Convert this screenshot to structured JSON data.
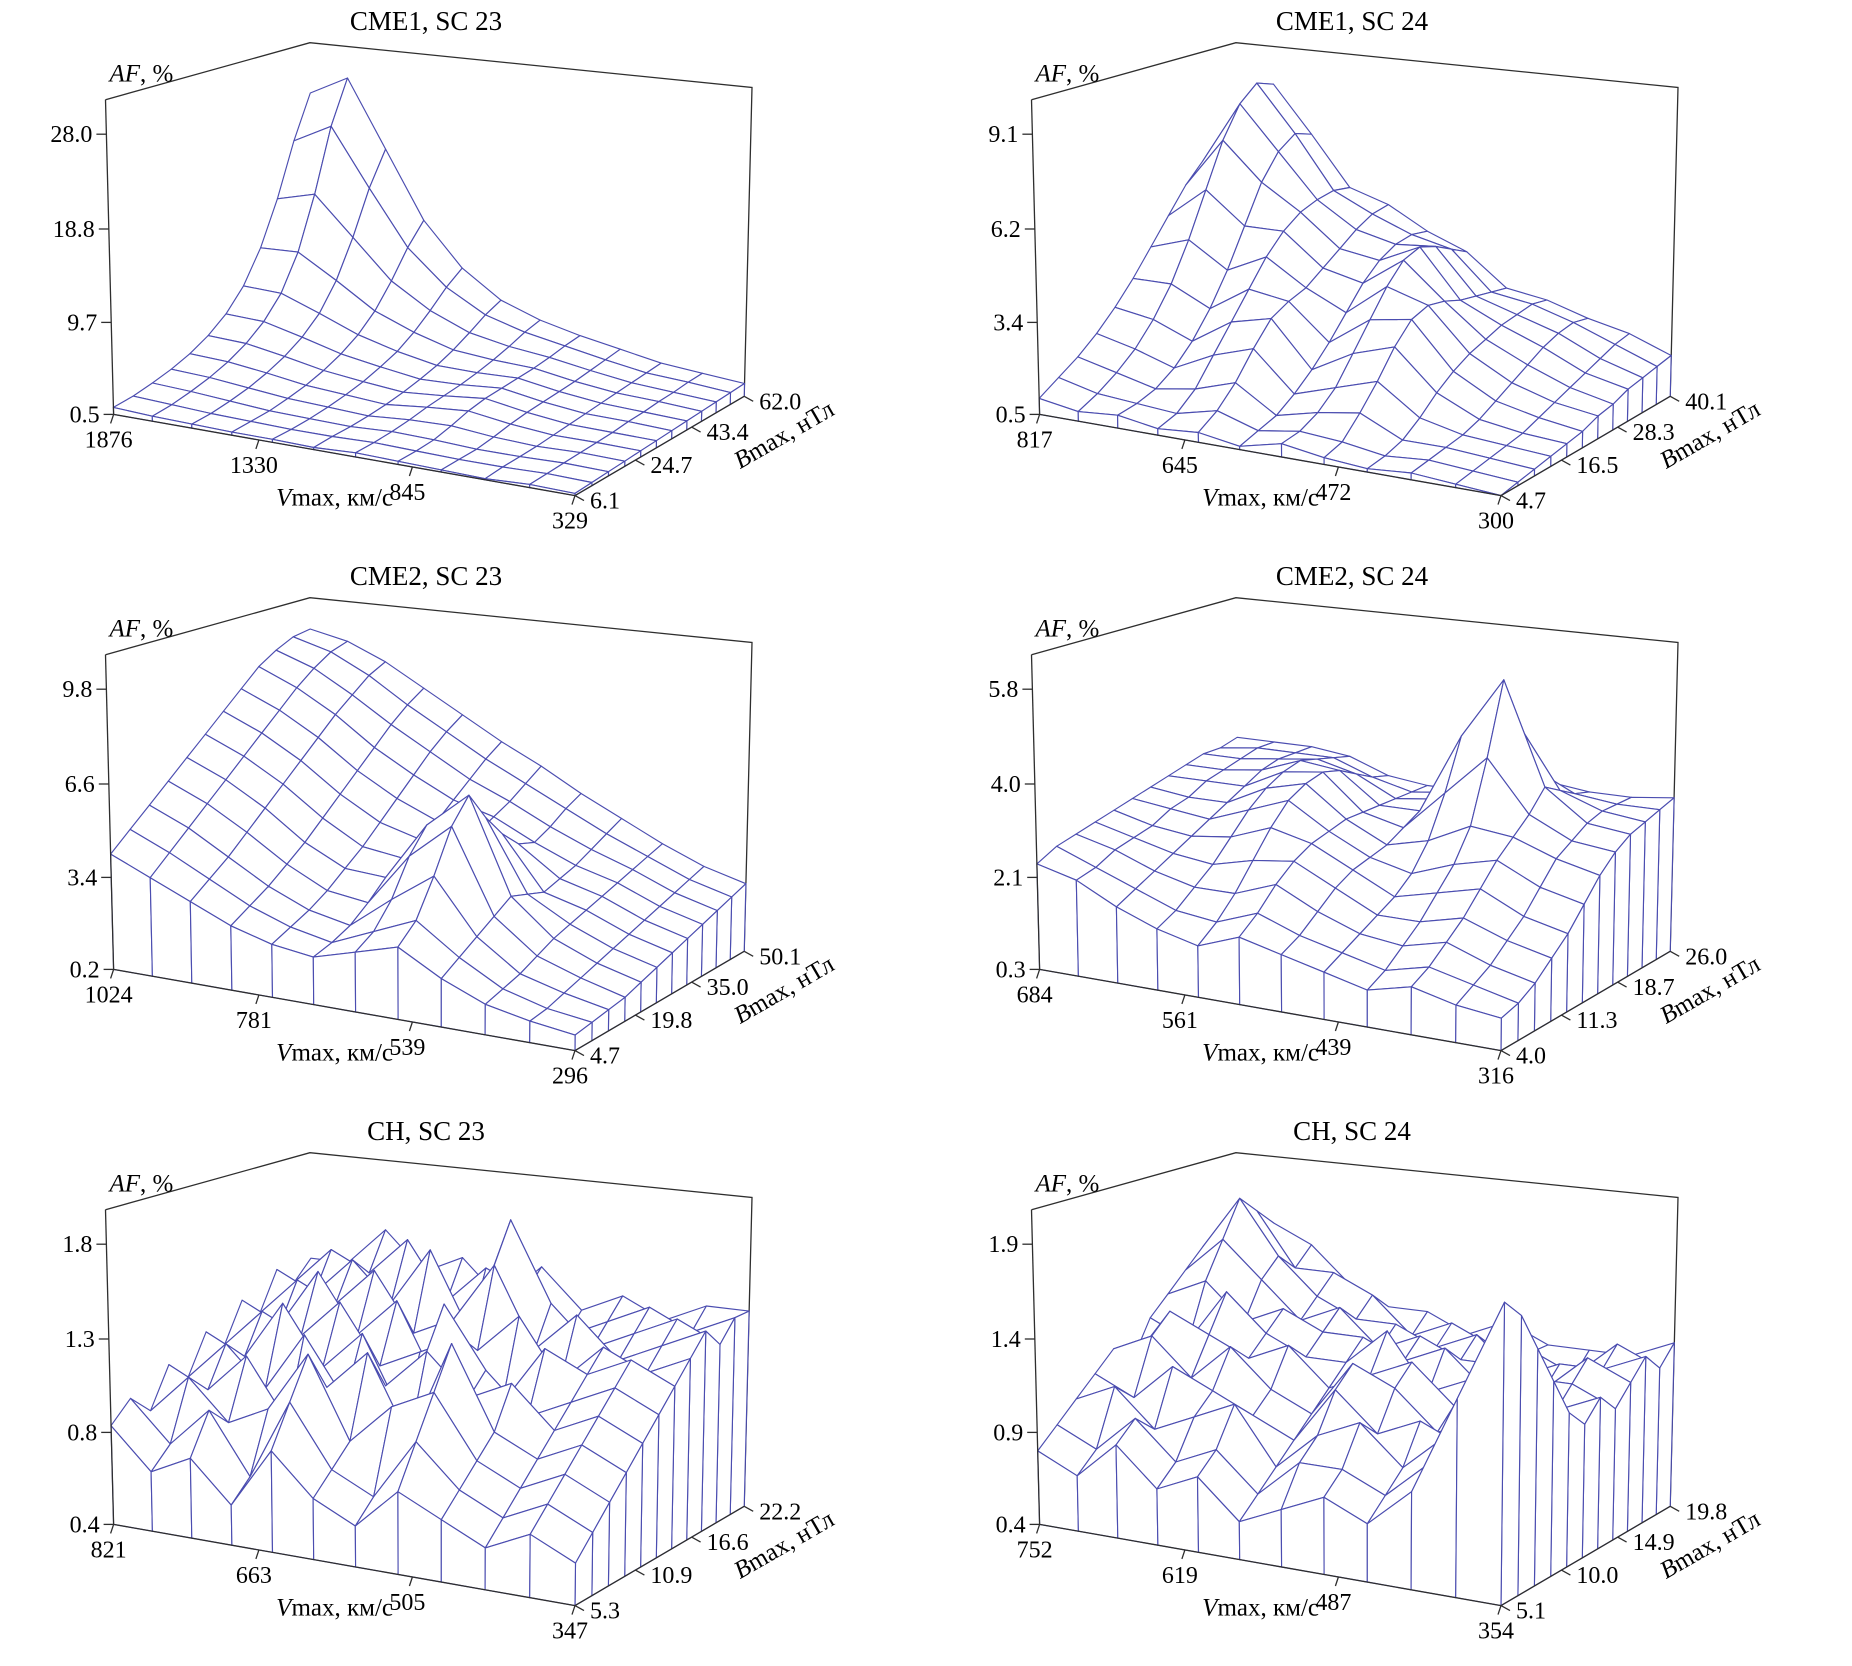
{
  "figure": {
    "background": "#ffffff",
    "mesh_color": "#4b4db0",
    "axis_color": "#2e2e2e",
    "text_color": "#000000",
    "values_layout": "rows: Bmax min(front) to max(back); cols: Vmax max(left) to min(right)"
  },
  "chart_data": [
    {
      "type": "surface",
      "title": "CME1, SC 23",
      "z_axis": {
        "label": "AF, %",
        "var": "AF",
        "rest": ", %",
        "ticks": [
          "0.5",
          "9.7",
          "18.8",
          "28.0"
        ]
      },
      "x_axis": {
        "label": "Vmax, км/с",
        "var": "V",
        "rest": "max, км/с",
        "ticks": [
          "1876",
          "1330",
          "845",
          "329"
        ]
      },
      "y_axis": {
        "label": "Bmax, нТл",
        "var": "B",
        "rest": "max, нТл",
        "ticks": [
          "6.1",
          "24.7",
          "43.4",
          "62.0"
        ]
      },
      "values": [
        [
          1.2,
          1.0,
          0.9,
          0.8,
          0.8,
          0.7,
          0.9,
          0.8,
          0.7,
          0.6,
          0.8,
          0.7
        ],
        [
          1.5,
          1.3,
          1.1,
          1.0,
          0.9,
          0.9,
          1.0,
          0.9,
          0.8,
          0.8,
          0.9,
          0.8
        ],
        [
          2.0,
          1.8,
          1.5,
          1.2,
          1.1,
          1.0,
          1.2,
          1.1,
          0.9,
          0.9,
          1.0,
          0.9
        ],
        [
          2.6,
          2.4,
          2.0,
          1.6,
          1.4,
          1.2,
          1.5,
          1.6,
          1.2,
          1.0,
          1.1,
          1.0
        ],
        [
          3.4,
          3.2,
          2.7,
          2.1,
          1.8,
          1.5,
          1.9,
          2.2,
          1.6,
          1.2,
          1.2,
          1.1
        ],
        [
          4.5,
          4.3,
          3.6,
          2.8,
          2.3,
          1.9,
          2.2,
          2.6,
          1.9,
          1.4,
          1.3,
          1.2
        ],
        [
          6.0,
          5.8,
          4.8,
          3.7,
          3.0,
          2.4,
          2.5,
          2.8,
          2.1,
          1.6,
          1.5,
          1.3
        ],
        [
          8.2,
          8.0,
          6.5,
          4.9,
          3.8,
          3.0,
          2.9,
          3.0,
          2.3,
          1.8,
          1.6,
          1.4
        ],
        [
          11.5,
          11.6,
          9.2,
          6.6,
          5.0,
          3.8,
          3.4,
          3.2,
          2.5,
          2.0,
          1.8,
          1.5
        ],
        [
          16.0,
          17.0,
          13.0,
          9.0,
          6.5,
          4.8,
          4.0,
          3.5,
          2.8,
          2.2,
          1.9,
          1.6
        ],
        [
          21.5,
          23.5,
          17.5,
          11.8,
          8.2,
          5.9,
          4.7,
          3.9,
          3.1,
          2.4,
          2.1,
          1.7
        ],
        [
          26.0,
          28.0,
          21.0,
          14.0,
          9.5,
          6.7,
          5.2,
          4.2,
          3.4,
          2.6,
          2.2,
          1.8
        ]
      ]
    },
    {
      "type": "surface",
      "title": "CME1, SC 24",
      "z_axis": {
        "label": "AF, %",
        "var": "AF",
        "rest": ", %",
        "ticks": [
          "0.5",
          "3.4",
          "6.2",
          "9.1"
        ]
      },
      "x_axis": {
        "label": "Vmax, км/с",
        "var": "V",
        "rest": "max, км/с",
        "ticks": [
          "817",
          "645",
          "472",
          "300"
        ]
      },
      "y_axis": {
        "label": "Bmax, нТл",
        "var": "B",
        "rest": "max, нТл",
        "ticks": [
          "4.7",
          "16.5",
          "28.3",
          "40.1"
        ]
      },
      "values": [
        [
          1.0,
          0.8,
          0.9,
          0.7,
          0.8,
          0.6,
          0.9,
          0.7,
          0.6,
          0.7,
          0.6,
          0.5
        ],
        [
          1.4,
          1.1,
          1.0,
          0.9,
          1.2,
          0.8,
          1.0,
          0.9,
          0.7,
          0.8,
          0.7,
          0.6
        ],
        [
          1.8,
          1.5,
          1.2,
          1.4,
          1.8,
          1.0,
          1.3,
          1.5,
          0.9,
          0.9,
          0.8,
          0.7
        ],
        [
          2.3,
          2.0,
          1.6,
          2.2,
          2.6,
          1.4,
          1.8,
          2.2,
          1.3,
          1.0,
          0.9,
          0.8
        ],
        [
          2.9,
          2.7,
          2.2,
          3.0,
          3.3,
          1.9,
          2.6,
          3.0,
          1.8,
          1.2,
          1.0,
          0.9
        ],
        [
          3.6,
          3.6,
          3.0,
          3.8,
          3.6,
          2.5,
          3.4,
          3.6,
          2.2,
          1.5,
          1.2,
          1.0
        ],
        [
          4.4,
          4.8,
          4.0,
          4.6,
          3.8,
          3.2,
          4.2,
          3.8,
          2.5,
          1.8,
          1.4,
          1.2
        ],
        [
          5.2,
          6.2,
          5.2,
          5.2,
          4.2,
          3.9,
          4.8,
          3.7,
          2.7,
          2.1,
          1.6,
          1.3
        ],
        [
          6.0,
          7.6,
          6.4,
          5.6,
          4.6,
          4.4,
          5.0,
          3.5,
          2.9,
          2.4,
          1.8,
          1.5
        ],
        [
          6.6,
          8.6,
          7.2,
          5.8,
          5.0,
          4.7,
          4.8,
          3.4,
          3.0,
          2.6,
          2.0,
          1.6
        ],
        [
          7.0,
          9.1,
          7.6,
          5.9,
          5.3,
          4.8,
          4.5,
          3.3,
          3.1,
          2.7,
          2.2,
          1.7
        ],
        [
          7.2,
          8.9,
          7.4,
          5.8,
          5.4,
          4.7,
          4.2,
          3.2,
          3.0,
          2.6,
          2.3,
          1.8
        ]
      ]
    },
    {
      "type": "surface",
      "title": "CME2, SC 23",
      "z_axis": {
        "label": "AF, %",
        "var": "AF",
        "rest": ", %",
        "ticks": [
          "0.2",
          "3.4",
          "6.6",
          "9.8"
        ]
      },
      "x_axis": {
        "label": "Vmax, км/с",
        "var": "V",
        "rest": "max, км/с",
        "ticks": [
          "1024",
          "781",
          "539",
          "296"
        ]
      },
      "y_axis": {
        "label": "Bmax, нТл",
        "var": "B",
        "rest": "max, нТл",
        "ticks": [
          "4.7",
          "19.8",
          "35.0",
          "50.1"
        ]
      },
      "values": [
        [
          4.2,
          3.6,
          3.0,
          2.4,
          2.0,
          1.8,
          2.2,
          2.6,
          1.8,
          1.2,
          0.9,
          0.7
        ],
        [
          4.8,
          4.2,
          3.5,
          2.8,
          2.3,
          2.0,
          2.6,
          3.2,
          2.2,
          1.4,
          1.0,
          0.8
        ],
        [
          5.4,
          4.8,
          4.0,
          3.2,
          2.6,
          2.3,
          3.4,
          4.4,
          2.6,
          1.6,
          1.2,
          0.9
        ],
        [
          6.0,
          5.4,
          4.6,
          3.7,
          3.0,
          2.8,
          4.6,
          5.8,
          3.0,
          1.9,
          1.4,
          1.0
        ],
        [
          6.6,
          6.0,
          5.2,
          4.2,
          3.5,
          3.4,
          5.4,
          6.6,
          3.4,
          2.2,
          1.6,
          1.2
        ],
        [
          7.2,
          6.6,
          5.8,
          4.8,
          4.0,
          3.8,
          5.0,
          5.6,
          3.2,
          2.4,
          1.8,
          1.4
        ],
        [
          7.8,
          7.2,
          6.4,
          5.4,
          4.6,
          4.2,
          4.6,
          4.8,
          3.0,
          2.6,
          2.0,
          1.6
        ],
        [
          8.4,
          7.8,
          7.0,
          6.0,
          5.2,
          4.6,
          4.4,
          4.2,
          3.2,
          2.8,
          2.2,
          1.8
        ],
        [
          9.0,
          8.4,
          7.6,
          6.6,
          5.8,
          5.1,
          4.7,
          4.0,
          3.4,
          3.0,
          2.4,
          2.0
        ],
        [
          9.4,
          8.9,
          8.1,
          7.2,
          6.4,
          5.6,
          5.0,
          4.3,
          3.7,
          3.2,
          2.6,
          2.2
        ],
        [
          9.7,
          9.3,
          8.6,
          7.7,
          6.9,
          6.1,
          5.4,
          4.7,
          4.0,
          3.4,
          2.8,
          2.4
        ],
        [
          9.8,
          9.5,
          8.9,
          8.1,
          7.3,
          6.5,
          5.8,
          5.0,
          4.3,
          3.6,
          3.0,
          2.6
        ]
      ]
    },
    {
      "type": "surface",
      "title": "CME2, SC 24",
      "z_axis": {
        "label": "AF, %",
        "var": "AF",
        "rest": ", %",
        "ticks": [
          "0.3",
          "2.1",
          "4.0",
          "5.8"
        ]
      },
      "x_axis": {
        "label": "Vmax, км/с",
        "var": "V",
        "rest": "max, км/с",
        "ticks": [
          "684",
          "561",
          "439",
          "316"
        ]
      },
      "y_axis": {
        "label": "Bmax, нТл",
        "var": "B",
        "rest": "max, нТл",
        "ticks": [
          "4.0",
          "11.3",
          "18.7",
          "26.0"
        ]
      },
      "values": [
        [
          2.4,
          2.2,
          1.8,
          1.5,
          1.3,
          1.6,
          1.4,
          1.2,
          1.0,
          1.2,
          1.0,
          0.9
        ],
        [
          2.6,
          2.3,
          2.0,
          1.7,
          1.6,
          1.9,
          1.6,
          1.4,
          1.2,
          1.4,
          1.2,
          1.0
        ],
        [
          2.7,
          2.5,
          2.2,
          2.0,
          2.0,
          2.3,
          1.9,
          1.6,
          1.5,
          1.7,
          1.4,
          1.2
        ],
        [
          2.8,
          2.6,
          2.4,
          2.3,
          2.5,
          2.6,
          2.2,
          1.8,
          1.8,
          2.0,
          1.7,
          1.5
        ],
        [
          2.9,
          2.7,
          2.6,
          2.7,
          3.0,
          2.8,
          2.4,
          2.0,
          2.2,
          2.4,
          2.0,
          1.8
        ],
        [
          3.0,
          2.9,
          2.8,
          3.1,
          3.4,
          2.9,
          2.5,
          2.3,
          2.6,
          2.8,
          2.4,
          2.2
        ],
        [
          3.1,
          3.0,
          3.0,
          3.4,
          3.6,
          3.0,
          2.6,
          2.8,
          3.2,
          3.1,
          2.8,
          2.6
        ],
        [
          3.2,
          3.2,
          3.2,
          3.6,
          3.7,
          3.0,
          2.8,
          3.6,
          4.4,
          3.4,
          3.0,
          2.9
        ],
        [
          3.3,
          3.3,
          3.4,
          3.7,
          3.6,
          3.0,
          3.0,
          4.6,
          5.8,
          3.8,
          3.2,
          3.1
        ],
        [
          3.4,
          3.4,
          3.5,
          3.6,
          3.4,
          3.0,
          3.1,
          4.0,
          4.8,
          3.6,
          3.3,
          3.2
        ],
        [
          3.4,
          3.5,
          3.5,
          3.5,
          3.2,
          3.0,
          3.1,
          3.4,
          3.8,
          3.4,
          3.3,
          3.3
        ],
        [
          3.5,
          3.5,
          3.5,
          3.4,
          3.1,
          3.0,
          3.0,
          3.2,
          3.4,
          3.3,
          3.3,
          3.4
        ]
      ]
    },
    {
      "type": "surface",
      "title": "CH, SC 23",
      "z_axis": {
        "label": "AF, %",
        "var": "AF",
        "rest": ", %",
        "ticks": [
          "0.4",
          "0.8",
          "1.3",
          "1.8"
        ]
      },
      "x_axis": {
        "label": "Vmax, км/с",
        "var": "V",
        "rest": "max, км/с",
        "ticks": [
          "821",
          "663",
          "505",
          "347"
        ]
      },
      "y_axis": {
        "label": "Bmax, нТл",
        "var": "B",
        "rest": "max, нТл",
        "ticks": [
          "5.3",
          "10.9",
          "16.6",
          "22.2"
        ]
      },
      "values": [
        [
          0.9,
          0.7,
          0.8,
          0.6,
          0.9,
          0.7,
          0.6,
          0.8,
          0.7,
          0.6,
          0.7,
          0.6
        ],
        [
          1.0,
          0.8,
          1.0,
          0.7,
          1.1,
          0.8,
          0.7,
          1.0,
          0.8,
          0.7,
          0.8,
          0.7
        ],
        [
          0.9,
          1.1,
          0.9,
          1.0,
          1.3,
          0.9,
          1.1,
          1.2,
          0.9,
          0.8,
          0.9,
          0.8
        ],
        [
          1.1,
          1.0,
          1.2,
          0.9,
          1.1,
          1.3,
          0.9,
          1.4,
          1.0,
          0.9,
          1.0,
          0.9
        ],
        [
          1.0,
          1.2,
          1.0,
          1.3,
          1.0,
          1.1,
          1.3,
          1.1,
          1.2,
          1.0,
          1.1,
          1.0
        ],
        [
          1.2,
          1.1,
          1.4,
          1.1,
          1.3,
          0.9,
          1.5,
          1.2,
          1.0,
          1.1,
          1.2,
          1.1
        ],
        [
          1.1,
          1.3,
          1.2,
          1.4,
          1.1,
          1.2,
          1.3,
          1.0,
          1.3,
          1.2,
          1.3,
          1.2
        ],
        [
          1.3,
          1.2,
          1.5,
          1.2,
          1.4,
          1.0,
          1.2,
          1.4,
          1.1,
          1.3,
          1.2,
          1.3
        ],
        [
          1.2,
          1.4,
          1.3,
          1.5,
          1.2,
          1.3,
          1.6,
          1.2,
          1.4,
          1.2,
          1.3,
          1.4
        ],
        [
          1.4,
          1.3,
          1.5,
          1.3,
          1.6,
          1.2,
          1.8,
          1.4,
          1.2,
          1.3,
          1.4,
          1.3
        ],
        [
          1.3,
          1.5,
          1.4,
          1.6,
          1.3,
          1.5,
          1.4,
          1.2,
          1.3,
          1.4,
          1.3,
          1.4
        ],
        [
          1.4,
          1.4,
          1.6,
          1.4,
          1.5,
          1.3,
          1.5,
          1.3,
          1.4,
          1.3,
          1.4,
          1.4
        ]
      ]
    },
    {
      "type": "surface",
      "title": "CH, SC 24",
      "z_axis": {
        "label": "AF, %",
        "var": "AF",
        "rest": ", %",
        "ticks": [
          "0.4",
          "0.9",
          "1.4",
          "1.9"
        ]
      },
      "x_axis": {
        "label": "Vmax, км/с",
        "var": "V",
        "rest": "max, км/с",
        "ticks": [
          "752",
          "619",
          "487",
          "354"
        ]
      },
      "y_axis": {
        "label": "Bmax, нТл",
        "var": "B",
        "rest": "max, нТл",
        "ticks": [
          "5.1",
          "10.0",
          "14.9",
          "19.8"
        ]
      },
      "values": [
        [
          0.8,
          0.7,
          0.9,
          0.7,
          0.8,
          0.6,
          0.7,
          0.8,
          0.7,
          0.9,
          1.4,
          1.9
        ],
        [
          0.9,
          0.8,
          1.0,
          0.8,
          0.9,
          0.7,
          0.9,
          0.9,
          0.8,
          1.0,
          1.5,
          1.8
        ],
        [
          1.0,
          1.1,
          0.9,
          1.0,
          1.1,
          0.8,
          1.0,
          1.1,
          0.9,
          1.1,
          1.3,
          1.6
        ],
        [
          1.1,
          1.0,
          1.2,
          1.1,
          1.0,
          0.9,
          1.2,
          1.0,
          1.1,
          1.0,
          1.2,
          1.4
        ],
        [
          1.2,
          1.3,
          1.1,
          1.3,
          1.1,
          1.0,
          1.3,
          1.2,
          1.0,
          1.1,
          1.1,
          1.2
        ],
        [
          1.1,
          1.4,
          1.3,
          1.2,
          1.3,
          1.1,
          1.2,
          1.3,
          1.1,
          1.0,
          1.2,
          1.1
        ],
        [
          1.3,
          1.2,
          1.5,
          1.3,
          1.2,
          1.2,
          1.4,
          1.1,
          1.2,
          1.1,
          1.1,
          1.2
        ],
        [
          1.4,
          1.5,
          1.3,
          1.4,
          1.3,
          1.3,
          1.2,
          1.3,
          1.1,
          1.2,
          1.2,
          1.1
        ],
        [
          1.5,
          1.7,
          1.5,
          1.3,
          1.4,
          1.2,
          1.3,
          1.2,
          1.2,
          1.1,
          1.3,
          1.2
        ],
        [
          1.6,
          1.9,
          1.6,
          1.4,
          1.3,
          1.3,
          1.2,
          1.3,
          1.1,
          1.2,
          1.2,
          1.3
        ],
        [
          1.5,
          1.8,
          1.5,
          1.5,
          1.4,
          1.2,
          1.3,
          1.2,
          1.2,
          1.1,
          1.3,
          1.2
        ],
        [
          1.6,
          1.7,
          1.6,
          1.4,
          1.3,
          1.3,
          1.2,
          1.3,
          1.2,
          1.2,
          1.2,
          1.3
        ]
      ]
    }
  ]
}
